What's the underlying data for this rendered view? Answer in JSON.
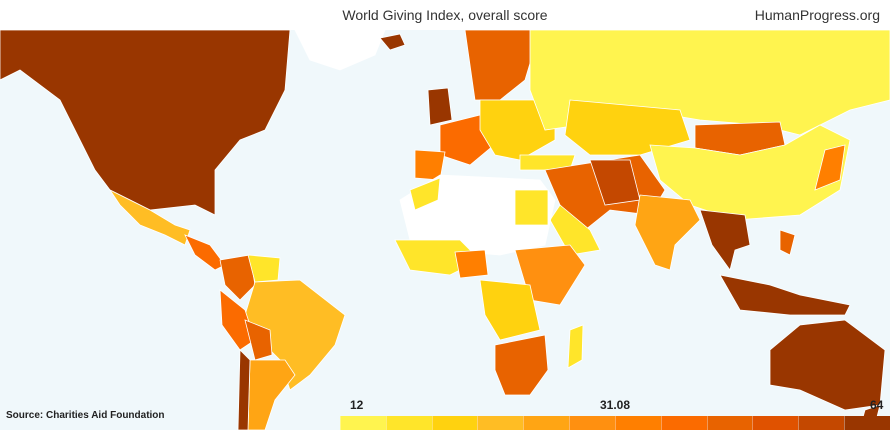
{
  "header": {
    "title": "World Giving Index, overall score",
    "brand": "HumanProgress.org"
  },
  "source": "Source: Charities Aid Foundation",
  "legend": {
    "min_label": "12",
    "mid_label": "31.08",
    "max_label": "64",
    "colors": [
      "#fff44f",
      "#ffe52a",
      "#ffd20f",
      "#ffbd24",
      "#ffa514",
      "#ff9010",
      "#ff7f00",
      "#fb6b00",
      "#e86300",
      "#e05200",
      "#c44800",
      "#993600"
    ]
  },
  "map": {
    "ocean_color": "#f0f8fb",
    "no_data_color": "#ffffff",
    "border_color": "#ffffff"
  }
}
